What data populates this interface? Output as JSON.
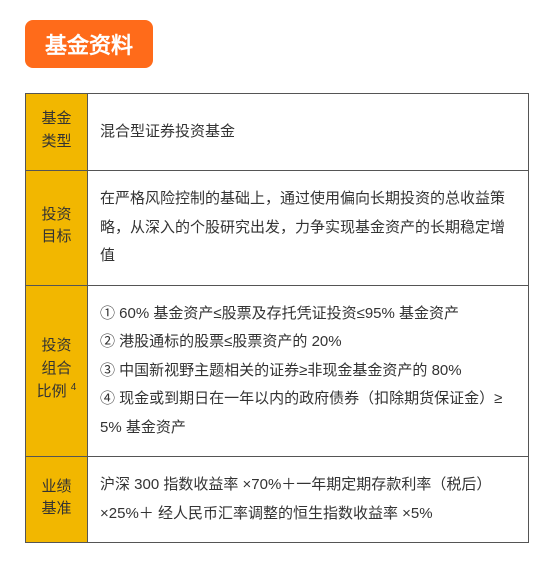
{
  "title": "基金资料",
  "styling": {
    "badge_bg": "#ff6b1a",
    "badge_text_color": "#ffffff",
    "label_bg": "#f2b700",
    "border_color": "#555555",
    "content_bg": "#ffffff",
    "text_color": "#333333",
    "font_family": "Microsoft YaHei",
    "title_fontsize": 22,
    "body_fontsize": 15,
    "line_height": 1.9
  },
  "table": {
    "rows": [
      {
        "label": "基金类型",
        "content": "混合型证券投资基金"
      },
      {
        "label": "投资目标",
        "content": "在严格风险控制的基础上，通过使用偏向长期投资的总收益策略，从深入的个股研究出发，力争实现基金资产的长期稳定增值"
      },
      {
        "label": "投资组合比例",
        "label_sup": "4",
        "content": "① 60% 基金资产≤股票及存托凭证投资≤95% 基金资产\n② 港股通标的股票≤股票资产的 20%\n③ 中国新视野主题相关的证券≥非现金基金资产的 80%\n④ 现金或到期日在一年以内的政府债券（扣除期货保证金）≥ 5% 基金资产"
      },
      {
        "label": "业绩基准",
        "content": "沪深 300 指数收益率 ×70%＋一年期定期存款利率（税后）×25%＋ 经人民币汇率调整的恒生指数收益率 ×5%"
      }
    ]
  }
}
